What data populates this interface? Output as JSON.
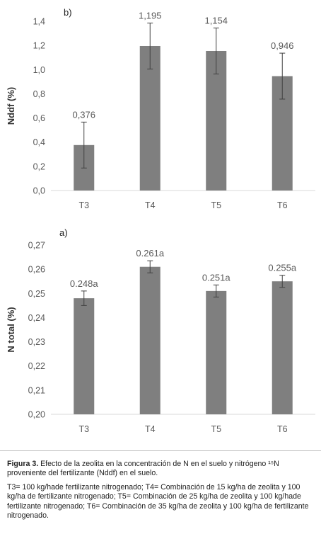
{
  "chart_data": [
    {
      "type": "bar",
      "panel_label": "b)",
      "ylabel": "Nddf (%)",
      "categories": [
        "T3",
        "T4",
        "T5",
        "T6"
      ],
      "values": [
        0.376,
        1.195,
        1.154,
        0.946
      ],
      "value_labels": [
        "0,376",
        "1,195",
        "1,154",
        "0,946"
      ],
      "error": [
        0.19,
        0.19,
        0.19,
        0.19
      ],
      "ylim": [
        0,
        1.4
      ],
      "yticks": [
        "0,0",
        "0,2",
        "0,4",
        "0,6",
        "0,8",
        "1,0",
        "1,2",
        "1,4"
      ],
      "bar_color": "#7f7f7f",
      "grid": false
    },
    {
      "type": "bar",
      "panel_label": "a)",
      "ylabel": "N total (%)",
      "categories": [
        "T3",
        "T4",
        "T5",
        "T6"
      ],
      "values": [
        0.248,
        0.261,
        0.251,
        0.255
      ],
      "value_labels": [
        "0.248a",
        "0.261a",
        "0.251a",
        "0.255a"
      ],
      "error": [
        0.003,
        0.0025,
        0.0025,
        0.0025
      ],
      "ylim": [
        0.2,
        0.27
      ],
      "yticks": [
        "0,20",
        "0,21",
        "0,22",
        "0,23",
        "0,24",
        "0,25",
        "0,26",
        "0,27"
      ],
      "bar_color": "#7f7f7f",
      "grid": false
    }
  ],
  "caption": {
    "label": "Figura 3.",
    "text": "Efecto de la zeolita en la concentración de N en el suelo y nitrógeno ¹⁵N proveniente del fertilizante (Nddf) en el suelo.",
    "notes": "T3= 100 kg/hade fertilizante nitrogenado; T4= Combinación de 15 kg/ha de zeolita y 100 kg/ha de fertilizante nitrogenado; T5= Combinación de 25 kg/ha de zeolita y 100 kg/hade fertilizante nitrogenado; T6= Combinación de 35 kg/ha de zeolita y 100 kg/ha de fertilizante nitrogenado."
  }
}
